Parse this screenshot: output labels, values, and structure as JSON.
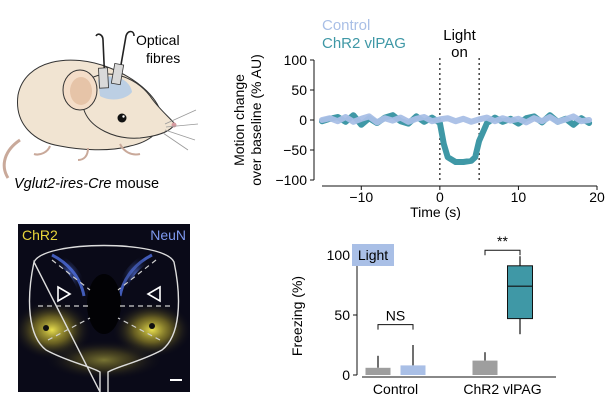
{
  "panel_a": {
    "optical_label_1": "Optical",
    "optical_label_2": "fibres",
    "mouse_caption_italic": "Vglut2-ires-Cre",
    "mouse_caption_rest": " mouse"
  },
  "panel_b": {
    "chr2_label": "ChR2",
    "neun_label": "NeuN",
    "colors": {
      "chr2": "#e8d53a",
      "neun": "#4a6ad8",
      "background": "#0a0a18"
    }
  },
  "chart_data": [
    {
      "type": "line",
      "legend_entries": [
        {
          "name": "Control",
          "color": "#a9bfe6"
        },
        {
          "name": "ChR2 vlPAG",
          "color": "#3f98a6"
        }
      ],
      "annotation": [
        "Light",
        "on"
      ],
      "light_on_interval": [
        0,
        5
      ],
      "xlabel": "Time (s)",
      "ylabel_lines": [
        "Motion change",
        "over baseline (% AU)"
      ],
      "xlim": [
        -15,
        20
      ],
      "ylim": [
        -100,
        100
      ],
      "xticks": [
        -10,
        0,
        10,
        20
      ],
      "xtick_labels": [
        "−10",
        "0",
        "10",
        "20"
      ],
      "yticks": [
        100,
        50,
        0,
        -50,
        -100
      ],
      "ytick_labels": [
        "100",
        "50",
        "0",
        "−50",
        "−100"
      ],
      "series": [
        {
          "name": "Control",
          "x": [
            -15,
            -14,
            -13,
            -12,
            -11,
            -10,
            -9,
            -8,
            -7,
            -6,
            -5,
            -4,
            -3,
            -2,
            -1,
            0,
            1,
            2,
            3,
            4,
            5,
            6,
            7,
            8,
            9,
            10,
            11,
            12,
            13,
            14,
            15,
            16,
            17,
            18,
            19
          ],
          "y": [
            0,
            3,
            -2,
            5,
            -3,
            2,
            6,
            -4,
            3,
            -1,
            4,
            -3,
            2,
            5,
            -2,
            1,
            3,
            -2,
            2,
            -3,
            1,
            4,
            -2,
            3,
            -1,
            2,
            -4,
            3,
            -2,
            5,
            -3,
            1,
            6,
            -2,
            0
          ]
        },
        {
          "name": "ChR2 vlPAG",
          "x": [
            -15,
            -14,
            -13,
            -12,
            -11,
            -10,
            -9,
            -8,
            -7,
            -6,
            -5,
            -4,
            -3,
            -2,
            -1,
            0,
            0.5,
            1,
            2,
            3,
            4,
            4.5,
            5,
            6,
            7,
            8,
            9,
            10,
            11,
            12,
            13,
            14,
            15,
            16,
            17,
            18,
            19
          ],
          "y": [
            -2,
            2,
            5,
            -3,
            8,
            -8,
            3,
            -5,
            4,
            8,
            -2,
            -6,
            6,
            -3,
            4,
            -5,
            -40,
            -62,
            -70,
            -70,
            -68,
            -62,
            -35,
            -5,
            4,
            -3,
            2,
            -6,
            3,
            6,
            -4,
            8,
            -3,
            2,
            -8,
            3,
            -5
          ]
        }
      ]
    },
    {
      "type": "box",
      "ylabel": "Freezing (%)",
      "ylim": [
        0,
        100
      ],
      "yticks": [
        0,
        50,
        100
      ],
      "ytick_labels": [
        "0",
        "50",
        "100"
      ],
      "legend_box": "Light",
      "categories": [
        "Control",
        "ChR2 vlPAG"
      ],
      "significance": [
        "NS",
        "**"
      ],
      "groups": [
        {
          "category": "Control",
          "condition": "no light",
          "color": "#9e9e9e",
          "median": 6,
          "whisker_high": 16,
          "whisker_low": 0
        },
        {
          "category": "Control",
          "condition": "light",
          "color": "#a9bfe6",
          "median": 8,
          "whisker_high": 25,
          "whisker_low": 0
        },
        {
          "category": "ChR2 vlPAG",
          "condition": "no light",
          "color": "#9e9e9e",
          "median": 12,
          "whisker_high": 19,
          "whisker_low": 0
        },
        {
          "category": "ChR2 vlPAG",
          "condition": "light",
          "color": "#3f98a6",
          "q1": 47,
          "median": 74,
          "q3": 91,
          "whisker_low": 34,
          "whisker_high": 99
        }
      ]
    }
  ]
}
